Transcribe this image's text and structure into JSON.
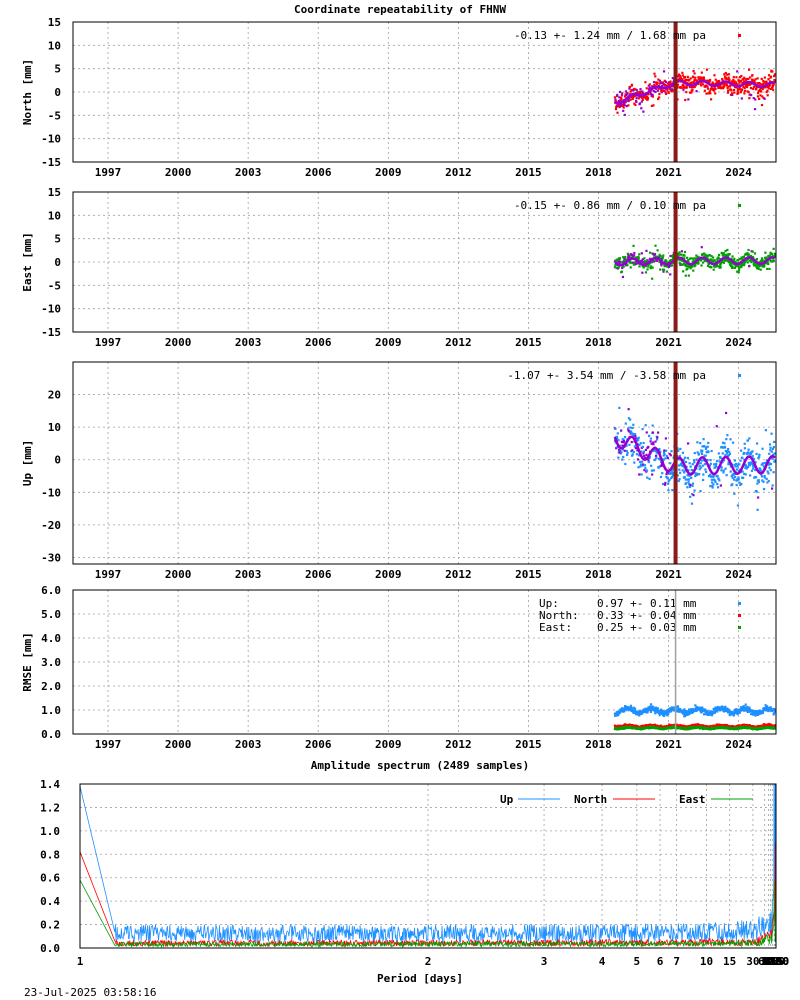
{
  "footer": "23-Jul-2025 03:58:16",
  "colors": {
    "north": "#ff0000",
    "east": "#00a000",
    "up": "#1e90ff",
    "model": "#9400d3",
    "event_line": "#8b1a1a",
    "rmse_event_line": "#a0a0a0"
  },
  "chart_data": [
    {
      "id": "north",
      "type": "scatter",
      "title": "Coordinate repeatability of FHNW",
      "ylabel": "North [mm]",
      "xlim": [
        1995.5,
        2025.6
      ],
      "ylim": [
        -15,
        15
      ],
      "yticks": [
        -15,
        -10,
        -5,
        0,
        5,
        10,
        15
      ],
      "xticks": [
        1997,
        2000,
        2003,
        2006,
        2009,
        2012,
        2015,
        2018,
        2021,
        2024
      ],
      "grid": true,
      "annotation": "-0.13 +- 1.24 mm /  1.68 mm pa",
      "legend_position": "top-right",
      "event_year": 2021.3,
      "data_start": 2018.7,
      "data_end": 2025.55,
      "trend_mm_per_year": 1.68,
      "series": [
        {
          "role": "trend_model",
          "breakpoints": [
            2018.7,
            2021.3,
            2025.55
          ],
          "values": [
            -2.2,
            2.0,
            1.5
          ],
          "annual_amplitude": 0.5
        },
        {
          "role": "observations",
          "scatter_mm": 1.24
        }
      ]
    },
    {
      "id": "east",
      "type": "scatter",
      "ylabel": "East [mm]",
      "xlim": [
        1995.5,
        2025.6
      ],
      "ylim": [
        -15,
        15
      ],
      "yticks": [
        -15,
        -10,
        -5,
        0,
        5,
        10,
        15
      ],
      "xticks": [
        1997,
        2000,
        2003,
        2006,
        2009,
        2012,
        2015,
        2018,
        2021,
        2024
      ],
      "grid": true,
      "annotation": "-0.15 +- 0.86 mm /  0.10 mm pa",
      "legend_position": "top-right",
      "event_year": 2021.3,
      "data_start": 2018.7,
      "data_end": 2025.55,
      "trend_mm_per_year": 0.1,
      "series": [
        {
          "role": "trend_model",
          "breakpoints": [
            2018.7,
            2021.3,
            2025.55
          ],
          "values": [
            0.0,
            0.2,
            0.3
          ],
          "annual_amplitude": 0.7
        },
        {
          "role": "observations",
          "scatter_mm": 0.86
        }
      ]
    },
    {
      "id": "up",
      "type": "scatter",
      "ylabel": "Up [mm]",
      "xlim": [
        1995.5,
        2025.6
      ],
      "ylim": [
        -32,
        30
      ],
      "yticks": [
        -30,
        -20,
        -10,
        0,
        10,
        20
      ],
      "xticks": [
        1997,
        2000,
        2003,
        2006,
        2009,
        2012,
        2015,
        2018,
        2021,
        2024
      ],
      "grid": true,
      "annotation": "-1.07 +- 3.54 mm / -3.58 mm pa",
      "legend_position": "top-right",
      "event_year": 2021.3,
      "data_start": 2018.7,
      "data_end": 2025.55,
      "trend_mm_per_year": -3.58,
      "series": [
        {
          "role": "trend_model",
          "breakpoints": [
            2018.7,
            2021.3,
            2025.55
          ],
          "values": [
            7.0,
            -2.0,
            -1.5
          ],
          "annual_amplitude": 2.6
        },
        {
          "role": "observations",
          "scatter_mm": 3.54
        }
      ]
    },
    {
      "id": "rmse",
      "type": "scatter",
      "ylabel": "RMSE [mm]",
      "xlim": [
        1995.5,
        2025.6
      ],
      "ylim": [
        0,
        6
      ],
      "yticks": [
        0.0,
        1.0,
        2.0,
        3.0,
        4.0,
        5.0,
        6.0
      ],
      "xticks": [
        1997,
        2000,
        2003,
        2006,
        2009,
        2012,
        2015,
        2018,
        2021,
        2024
      ],
      "grid": true,
      "event_year": 2021.3,
      "data_start": 2018.7,
      "data_end": 2025.55,
      "legend_position": "top-right",
      "legend": [
        {
          "label": "Up:",
          "text": "0.97 +- 0.11 mm",
          "mean": 0.97,
          "std": 0.11,
          "color_key": "up"
        },
        {
          "label": "North:",
          "text": "0.33 +- 0.04 mm",
          "mean": 0.33,
          "std": 0.04,
          "color_key": "north"
        },
        {
          "label": "East:",
          "text": "0.25 +- 0.03 mm",
          "mean": 0.25,
          "std": 0.03,
          "color_key": "east"
        }
      ]
    },
    {
      "id": "spectrum",
      "type": "line",
      "title": "Amplitude spectrum (2489 samples)",
      "xlabel": "Period [days]",
      "x_scale": "reciprocal",
      "xlim": [
        1,
        8760
      ],
      "ylim": [
        0,
        1.4
      ],
      "yticks": [
        0.0,
        0.2,
        0.4,
        0.6,
        0.8,
        1.0,
        1.2,
        1.4
      ],
      "xticks": [
        1,
        2,
        3,
        4,
        5,
        6,
        7,
        10,
        15,
        30,
        61,
        91,
        122,
        183,
        365,
        730,
        2190,
        4380,
        8760
      ],
      "grid": true,
      "legend_position": "top-right",
      "series": [
        {
          "name": "Up",
          "color_key": "up",
          "peaks": [
            [
              1,
              1.38
            ],
            [
              1.05,
              0.3
            ],
            [
              30,
              0.25
            ],
            [
              61,
              0.28
            ],
            [
              91,
              0.3
            ],
            [
              122,
              0.32
            ],
            [
              183,
              0.36
            ],
            [
              300,
              0.5
            ],
            [
              365,
              2.5
            ],
            [
              420,
              0.45
            ],
            [
              520,
              0.8
            ],
            [
              730,
              0.85
            ],
            [
              1100,
              1.55
            ],
            [
              2190,
              0.1
            ]
          ],
          "noise": [
            [
              1.05,
              0.12
            ],
            [
              10,
              0.13
            ],
            [
              30,
              0.15
            ],
            [
              100,
              0.2
            ]
          ]
        },
        {
          "name": "North",
          "color_key": "north",
          "peaks": [
            [
              1,
              0.82
            ],
            [
              1.05,
              0.08
            ],
            [
              183,
              0.2
            ],
            [
              300,
              0.3
            ],
            [
              365,
              0.33
            ],
            [
              420,
              0.3
            ],
            [
              520,
              0.2
            ],
            [
              850,
              0.7
            ],
            [
              1100,
              0.9
            ],
            [
              2190,
              0.2
            ]
          ],
          "noise": [
            [
              1.05,
              0.04
            ],
            [
              30,
              0.05
            ],
            [
              100,
              0.1
            ]
          ]
        },
        {
          "name": "East",
          "color_key": "east",
          "peaks": [
            [
              1,
              0.58
            ],
            [
              1.05,
              0.06
            ],
            [
              183,
              0.12
            ],
            [
              300,
              0.2
            ],
            [
              365,
              0.57
            ],
            [
              420,
              0.3
            ],
            [
              520,
              0.28
            ],
            [
              730,
              0.05
            ],
            [
              1100,
              0.1
            ],
            [
              2190,
              0.11
            ]
          ],
          "noise": [
            [
              1.05,
              0.03
            ],
            [
              30,
              0.04
            ],
            [
              100,
              0.08
            ]
          ]
        }
      ]
    }
  ]
}
